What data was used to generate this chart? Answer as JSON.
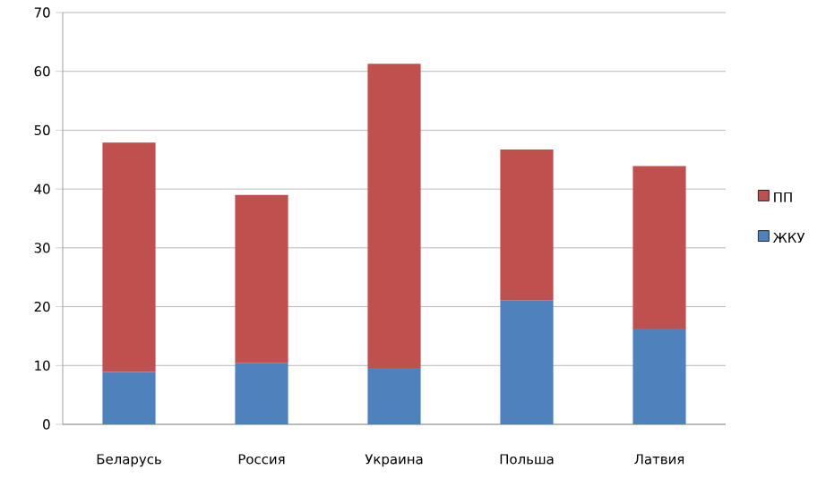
{
  "chart_data": {
    "type": "bar",
    "stacked": true,
    "categories": [
      "Беларусь",
      "Россия",
      "Украина",
      "Польша",
      "Латвия"
    ],
    "series": [
      {
        "name": "ЖКУ",
        "color": "#4f81bd",
        "values": [
          8.9,
          10.4,
          9.6,
          21.1,
          16.3
        ]
      },
      {
        "name": "ПП",
        "color": "#c0504d",
        "values": [
          39.0,
          28.6,
          51.7,
          25.6,
          27.6
        ]
      }
    ],
    "ylim": [
      0,
      70
    ],
    "yticks": [
      0,
      10,
      20,
      30,
      40,
      50,
      60,
      70
    ],
    "grid": "y",
    "legend": "right"
  }
}
